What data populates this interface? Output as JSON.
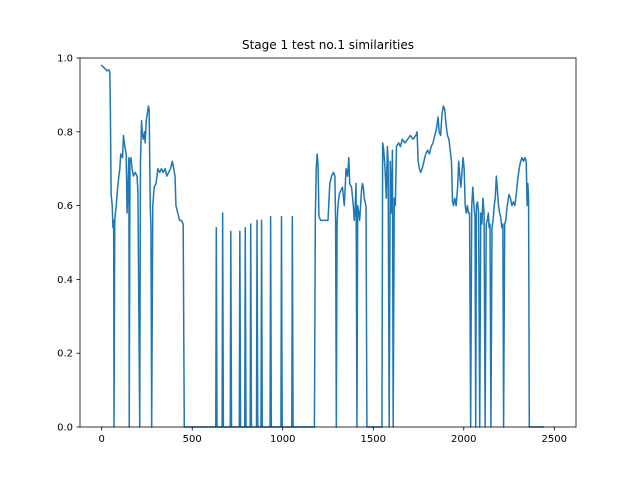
{
  "chart_data": {
    "type": "line",
    "title": "Stage 1 test no.1 similarities",
    "xlabel": "",
    "ylabel": "",
    "xlim": [
      -120,
      2620
    ],
    "ylim": [
      0.0,
      1.0
    ],
    "xticks": [
      0,
      500,
      1000,
      1500,
      2000,
      2500
    ],
    "yticks": [
      0.0,
      0.2,
      0.4,
      0.6,
      0.8,
      1.0
    ],
    "xtick_labels": [
      "0",
      "500",
      "1000",
      "1500",
      "2000",
      "2500"
    ],
    "ytick_labels": [
      "0.0",
      "0.2",
      "0.4",
      "0.6",
      "0.8",
      "1.0"
    ],
    "grid": false,
    "series": [
      {
        "color": "#1f77b4",
        "points": [
          [
            0,
            0.98
          ],
          [
            10,
            0.975
          ],
          [
            20,
            0.97
          ],
          [
            30,
            0.965
          ],
          [
            40,
            0.968
          ],
          [
            45,
            0.96
          ],
          [
            48,
            0.85
          ],
          [
            52,
            0.63
          ],
          [
            58,
            0.6
          ],
          [
            62,
            0.54
          ],
          [
            66,
            0.56
          ],
          [
            68,
            0.0
          ],
          [
            72,
            0.56
          ],
          [
            80,
            0.6
          ],
          [
            90,
            0.66
          ],
          [
            100,
            0.7
          ],
          [
            105,
            0.74
          ],
          [
            115,
            0.73
          ],
          [
            120,
            0.79
          ],
          [
            128,
            0.76
          ],
          [
            135,
            0.74
          ],
          [
            140,
            0.58
          ],
          [
            150,
            0.73
          ],
          [
            152,
            0.0
          ],
          [
            156,
            0.72
          ],
          [
            162,
            0.73
          ],
          [
            168,
            0.7
          ],
          [
            175,
            0.68
          ],
          [
            185,
            0.69
          ],
          [
            195,
            0.68
          ],
          [
            200,
            0.64
          ],
          [
            210,
            0.0
          ],
          [
            214,
            0.72
          ],
          [
            220,
            0.83
          ],
          [
            225,
            0.79
          ],
          [
            230,
            0.78
          ],
          [
            236,
            0.8
          ],
          [
            240,
            0.77
          ],
          [
            246,
            0.83
          ],
          [
            252,
            0.85
          ],
          [
            258,
            0.87
          ],
          [
            262,
            0.86
          ],
          [
            268,
            0.6
          ],
          [
            272,
            0.54
          ],
          [
            276,
            0.0
          ],
          [
            282,
            0.6
          ],
          [
            290,
            0.65
          ],
          [
            300,
            0.66
          ],
          [
            310,
            0.7
          ],
          [
            320,
            0.69
          ],
          [
            330,
            0.7
          ],
          [
            340,
            0.69
          ],
          [
            350,
            0.7
          ],
          [
            360,
            0.68
          ],
          [
            370,
            0.69
          ],
          [
            380,
            0.7
          ],
          [
            390,
            0.72
          ],
          [
            398,
            0.7
          ],
          [
            405,
            0.68
          ],
          [
            410,
            0.6
          ],
          [
            420,
            0.58
          ],
          [
            430,
            0.56
          ],
          [
            440,
            0.56
          ],
          [
            450,
            0.55
          ],
          [
            456,
            0.0
          ],
          [
            470,
            0.0
          ],
          [
            530,
            0.0
          ],
          [
            600,
            0.0
          ],
          [
            630,
            0.0
          ],
          [
            633,
            0.54
          ],
          [
            637,
            0.0
          ],
          [
            665,
            0.0
          ],
          [
            668,
            0.58
          ],
          [
            672,
            0.0
          ],
          [
            710,
            0.0
          ],
          [
            713,
            0.53
          ],
          [
            717,
            0.0
          ],
          [
            760,
            0.0
          ],
          [
            763,
            0.53
          ],
          [
            767,
            0.0
          ],
          [
            790,
            0.0
          ],
          [
            793,
            0.54
          ],
          [
            797,
            0.0
          ],
          [
            820,
            0.0
          ],
          [
            823,
            0.55
          ],
          [
            827,
            0.0
          ],
          [
            855,
            0.0
          ],
          [
            858,
            0.56
          ],
          [
            862,
            0.0
          ],
          [
            880,
            0.0
          ],
          [
            883,
            0.56
          ],
          [
            887,
            0.0
          ],
          [
            930,
            0.0
          ],
          [
            933,
            0.57
          ],
          [
            937,
            0.0
          ],
          [
            990,
            0.0
          ],
          [
            993,
            0.57
          ],
          [
            997,
            0.0
          ],
          [
            1050,
            0.0
          ],
          [
            1053,
            0.57
          ],
          [
            1057,
            0.0
          ],
          [
            1100,
            0.0
          ],
          [
            1150,
            0.0
          ],
          [
            1175,
            0.0
          ],
          [
            1180,
            0.57
          ],
          [
            1185,
            0.7
          ],
          [
            1190,
            0.74
          ],
          [
            1195,
            0.71
          ],
          [
            1200,
            0.57
          ],
          [
            1210,
            0.56
          ],
          [
            1220,
            0.56
          ],
          [
            1230,
            0.56
          ],
          [
            1240,
            0.56
          ],
          [
            1250,
            0.56
          ],
          [
            1260,
            0.66
          ],
          [
            1270,
            0.68
          ],
          [
            1280,
            0.69
          ],
          [
            1288,
            0.68
          ],
          [
            1292,
            0.56
          ],
          [
            1296,
            0.0
          ],
          [
            1300,
            0.55
          ],
          [
            1305,
            0.6
          ],
          [
            1312,
            0.63
          ],
          [
            1320,
            0.64
          ],
          [
            1330,
            0.65
          ],
          [
            1340,
            0.6
          ],
          [
            1350,
            0.7
          ],
          [
            1358,
            0.68
          ],
          [
            1365,
            0.73
          ],
          [
            1370,
            0.66
          ],
          [
            1380,
            0.65
          ],
          [
            1390,
            0.6
          ],
          [
            1395,
            0.56
          ],
          [
            1400,
            0.59
          ],
          [
            1405,
            0.66
          ],
          [
            1410,
            0.0
          ],
          [
            1414,
            0.6
          ],
          [
            1420,
            0.58
          ],
          [
            1425,
            0.56
          ],
          [
            1430,
            0.6
          ],
          [
            1435,
            0.64
          ],
          [
            1440,
            0.66
          ],
          [
            1445,
            0.65
          ],
          [
            1450,
            0.62
          ],
          [
            1460,
            0.6
          ],
          [
            1465,
            0.0
          ],
          [
            1470,
            0.0
          ],
          [
            1520,
            0.0
          ],
          [
            1540,
            0.0
          ],
          [
            1548,
            0.0
          ],
          [
            1552,
            0.77
          ],
          [
            1558,
            0.75
          ],
          [
            1565,
            0.7
          ],
          [
            1572,
            0.62
          ],
          [
            1578,
            0.76
          ],
          [
            1582,
            0.72
          ],
          [
            1588,
            0.0
          ],
          [
            1594,
            0.72
          ],
          [
            1600,
            0.58
          ],
          [
            1606,
            0.75
          ],
          [
            1610,
            0.0
          ],
          [
            1616,
            0.62
          ],
          [
            1622,
            0.6
          ],
          [
            1628,
            0.76
          ],
          [
            1640,
            0.77
          ],
          [
            1650,
            0.76
          ],
          [
            1660,
            0.78
          ],
          [
            1675,
            0.77
          ],
          [
            1690,
            0.78
          ],
          [
            1705,
            0.79
          ],
          [
            1720,
            0.78
          ],
          [
            1735,
            0.79
          ],
          [
            1742,
            0.8
          ],
          [
            1748,
            0.72
          ],
          [
            1755,
            0.7
          ],
          [
            1762,
            0.69
          ],
          [
            1770,
            0.7
          ],
          [
            1780,
            0.72
          ],
          [
            1790,
            0.74
          ],
          [
            1800,
            0.75
          ],
          [
            1810,
            0.74
          ],
          [
            1820,
            0.76
          ],
          [
            1830,
            0.77
          ],
          [
            1840,
            0.79
          ],
          [
            1850,
            0.81
          ],
          [
            1858,
            0.84
          ],
          [
            1864,
            0.8
          ],
          [
            1872,
            0.79
          ],
          [
            1880,
            0.85
          ],
          [
            1888,
            0.87
          ],
          [
            1895,
            0.86
          ],
          [
            1902,
            0.82
          ],
          [
            1910,
            0.79
          ],
          [
            1918,
            0.78
          ],
          [
            1925,
            0.75
          ],
          [
            1932,
            0.72
          ],
          [
            1938,
            0.61
          ],
          [
            1944,
            0.6
          ],
          [
            1950,
            0.62
          ],
          [
            1958,
            0.6
          ],
          [
            1966,
            0.65
          ],
          [
            1972,
            0.72
          ],
          [
            1978,
            0.68
          ],
          [
            1984,
            0.65
          ],
          [
            1990,
            0.69
          ],
          [
            1996,
            0.73
          ],
          [
            2002,
            0.7
          ],
          [
            2008,
            0.6
          ],
          [
            2014,
            0.58
          ],
          [
            2020,
            0.6
          ],
          [
            2026,
            0.58
          ],
          [
            2032,
            0.58
          ],
          [
            2038,
            0.0
          ],
          [
            2044,
            0.6
          ],
          [
            2050,
            0.65
          ],
          [
            2056,
            0.6
          ],
          [
            2062,
            0.57
          ],
          [
            2066,
            0.0
          ],
          [
            2070,
            0.6
          ],
          [
            2076,
            0.61
          ],
          [
            2082,
            0.58
          ],
          [
            2088,
            0.0
          ],
          [
            2094,
            0.58
          ],
          [
            2100,
            0.55
          ],
          [
            2106,
            0.62
          ],
          [
            2112,
            0.58
          ],
          [
            2118,
            0.0
          ],
          [
            2124,
            0.55
          ],
          [
            2130,
            0.56
          ],
          [
            2136,
            0.58
          ],
          [
            2140,
            0.54
          ],
          [
            2145,
            0.55
          ],
          [
            2150,
            0.0
          ],
          [
            2156,
            0.54
          ],
          [
            2162,
            0.56
          ],
          [
            2168,
            0.6
          ],
          [
            2174,
            0.62
          ],
          [
            2180,
            0.68
          ],
          [
            2186,
            0.64
          ],
          [
            2192,
            0.6
          ],
          [
            2198,
            0.58
          ],
          [
            2204,
            0.57
          ],
          [
            2210,
            0.54
          ],
          [
            2216,
            0.55
          ],
          [
            2220,
            0.0
          ],
          [
            2226,
            0.55
          ],
          [
            2232,
            0.56
          ],
          [
            2240,
            0.6
          ],
          [
            2250,
            0.63
          ],
          [
            2258,
            0.62
          ],
          [
            2266,
            0.6
          ],
          [
            2274,
            0.61
          ],
          [
            2282,
            0.6
          ],
          [
            2290,
            0.63
          ],
          [
            2298,
            0.67
          ],
          [
            2306,
            0.7
          ],
          [
            2314,
            0.72
          ],
          [
            2322,
            0.73
          ],
          [
            2330,
            0.72
          ],
          [
            2338,
            0.73
          ],
          [
            2345,
            0.72
          ],
          [
            2350,
            0.6
          ],
          [
            2354,
            0.66
          ],
          [
            2358,
            0.62
          ],
          [
            2362,
            0.0
          ],
          [
            2366,
            0.0
          ],
          [
            2380,
            0.0
          ],
          [
            2400,
            0.0
          ],
          [
            2420,
            0.0
          ],
          [
            2440,
            0.0
          ]
        ]
      }
    ]
  }
}
